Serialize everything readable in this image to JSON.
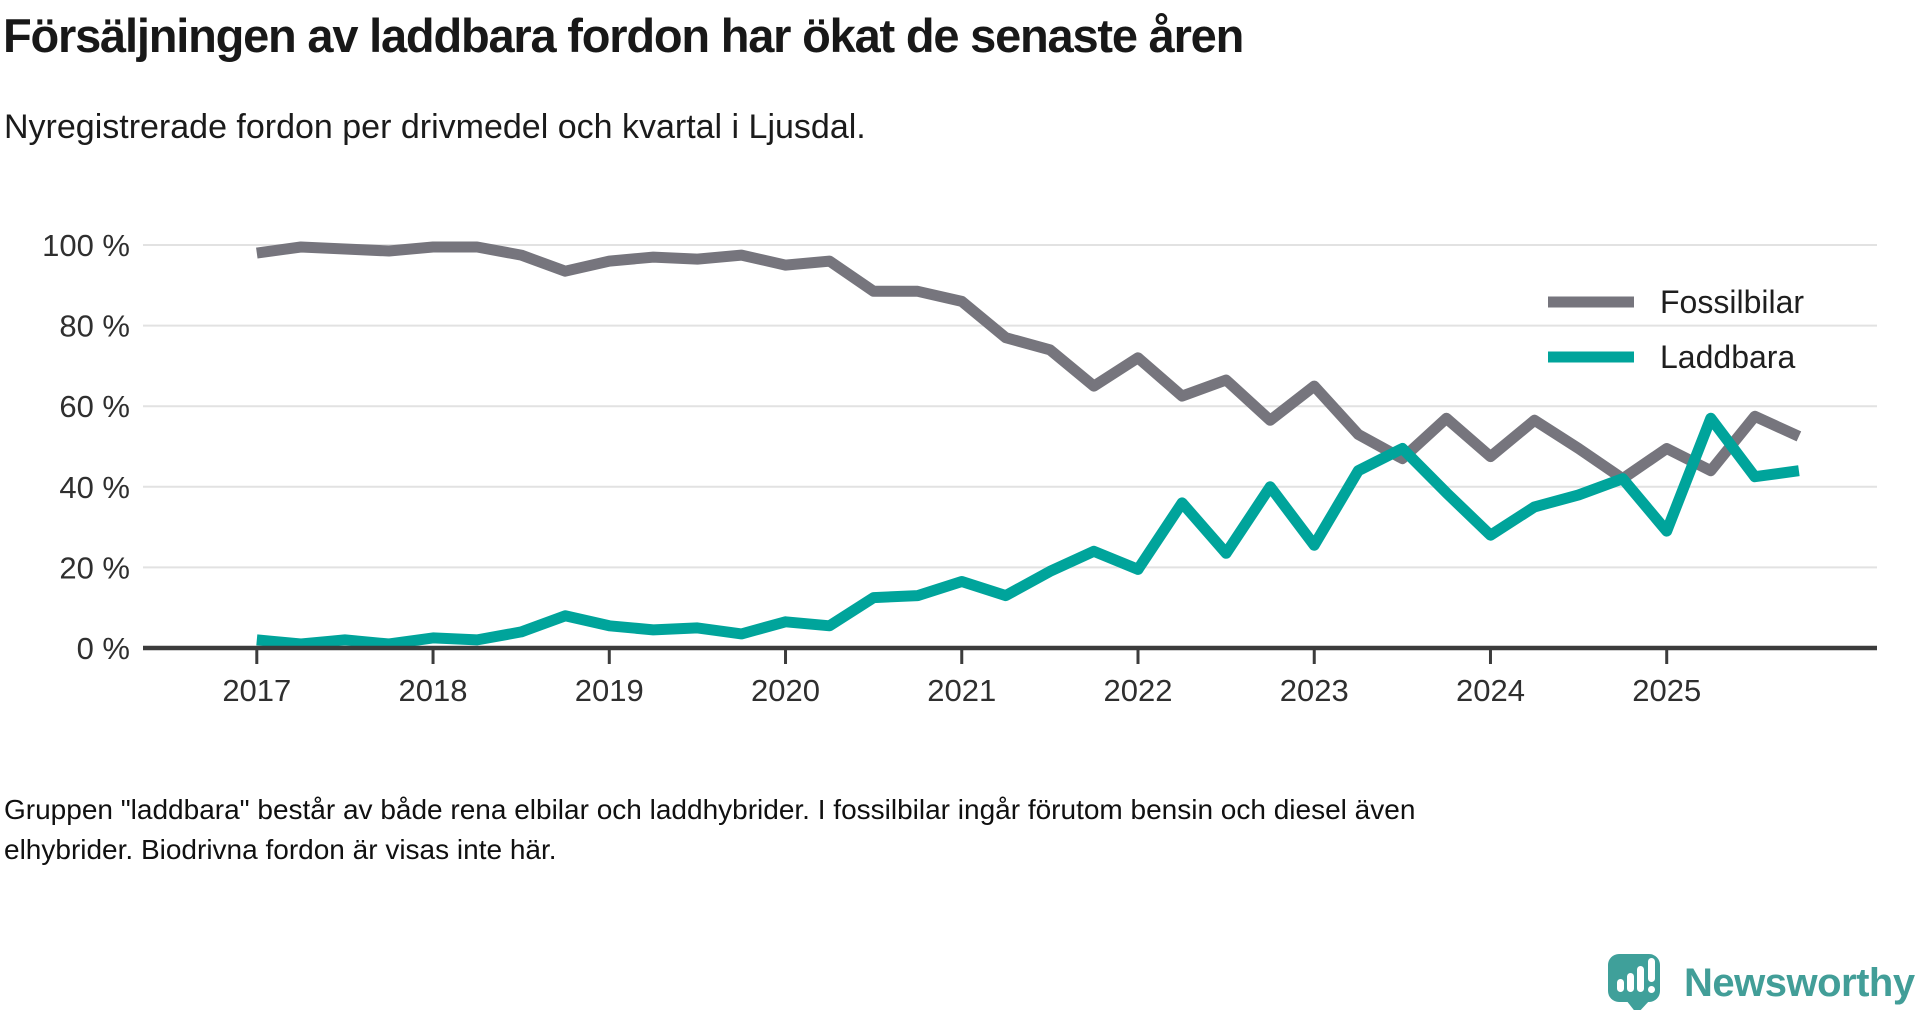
{
  "header": {
    "title": "Försäljningen av laddbara fordon har ökat de senaste åren",
    "subtitle": "Nyregistrerade fordon per drivmedel och kvartal i Ljusdal."
  },
  "footnote": {
    "line1": "Gruppen \"laddbara\" består av både rena elbilar och laddhybrider. I fossilbilar ingår förutom bensin och diesel även",
    "line2": "elhybrider. Biodrivna fordon är visas inte här."
  },
  "logo": {
    "text": "Newsworthy",
    "icon": "newsworthy-speech-bubble-bar-chart-icon",
    "color": "#429E98"
  },
  "colors": {
    "fossil_line": "#76757D",
    "laddbara_line": "#00A49B",
    "axis": "#3C3C3C",
    "gridline": "#E2E2E2",
    "tick_label": "#2F2F2F"
  },
  "chart_data": {
    "type": "line",
    "title": "Försäljningen av laddbara fordon har ökat de senaste åren",
    "subtitle": "Nyregistrerade fordon per drivmedel och kvartal i Ljusdal.",
    "xlabel": "",
    "ylabel": "",
    "ylim": [
      0,
      100
    ],
    "grid": "horizontal",
    "legend_position": "inside-top-right",
    "y_ticks": [
      {
        "value": 100,
        "label": "100 %"
      },
      {
        "value": 80,
        "label": "80 %"
      },
      {
        "value": 60,
        "label": "60 %"
      },
      {
        "value": 40,
        "label": "40 %"
      },
      {
        "value": 20,
        "label": "20 %"
      },
      {
        "value": 0,
        "label": "0 %"
      }
    ],
    "x_tick_years": [
      "2017",
      "2018",
      "2019",
      "2020",
      "2021",
      "2022",
      "2023",
      "2024",
      "2025"
    ],
    "categories": [
      "2017 Q1",
      "2017 Q2",
      "2017 Q3",
      "2017 Q4",
      "2018 Q1",
      "2018 Q2",
      "2018 Q3",
      "2018 Q4",
      "2019 Q1",
      "2019 Q2",
      "2019 Q3",
      "2019 Q4",
      "2020 Q1",
      "2020 Q2",
      "2020 Q3",
      "2020 Q4",
      "2021 Q1",
      "2021 Q2",
      "2021 Q3",
      "2021 Q4",
      "2022 Q1",
      "2022 Q2",
      "2022 Q3",
      "2022 Q4",
      "2023 Q1",
      "2023 Q2",
      "2023 Q3",
      "2023 Q4",
      "2024 Q1",
      "2024 Q2",
      "2024 Q3",
      "2024 Q4",
      "2025 Q1",
      "2025 Q2",
      "2025 Q3",
      "2025 Q4"
    ],
    "series": [
      {
        "name": "Fossilbilar",
        "color": "#76757D",
        "values": [
          98,
          99.5,
          99,
          98.5,
          99.5,
          99.5,
          97.5,
          93.5,
          96,
          97,
          96.5,
          97.5,
          95,
          96,
          88.5,
          88.5,
          86,
          77,
          74,
          65,
          72,
          62.5,
          66.5,
          56.5,
          65,
          53,
          47,
          57,
          47.5,
          56.5,
          49.5,
          42,
          49.5,
          44,
          57.5,
          52.5
        ]
      },
      {
        "name": "Laddbara",
        "color": "#00A49B",
        "values": [
          2,
          1,
          2,
          1,
          2.5,
          2,
          4,
          8,
          5.5,
          4.5,
          5,
          3.5,
          6.5,
          5.5,
          12.5,
          13,
          16.5,
          13,
          19,
          24,
          19.5,
          36,
          23.5,
          40,
          25.5,
          44,
          49.5,
          38.5,
          28,
          35,
          38,
          42,
          29,
          57,
          42.5,
          44
        ]
      }
    ]
  }
}
